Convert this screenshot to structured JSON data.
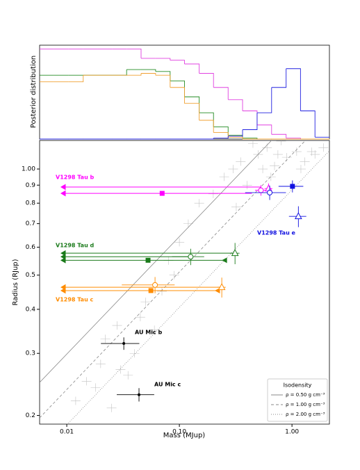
{
  "chart_data": [
    {
      "type": "histogram",
      "ylabel": "Posterior distribution",
      "xscale": "log",
      "xlim": [
        0.00574,
        2.15
      ],
      "ylim": [
        0,
        1
      ],
      "bins": [
        0.00574,
        0.00773,
        0.0104,
        0.014,
        0.0188,
        0.0253,
        0.034,
        0.0457,
        0.0615,
        0.0828,
        0.111,
        0.15,
        0.201,
        0.271,
        0.364,
        0.49,
        0.659,
        0.887,
        1.19,
        1.6,
        2.15
      ],
      "series": [
        {
          "color": "#e040e0",
          "values": [
            0.96,
            0.96,
            0.96,
            0.96,
            0.96,
            0.96,
            0.96,
            0.86,
            0.86,
            0.84,
            0.8,
            0.7,
            0.55,
            0.42,
            0.3,
            0.15,
            0.05,
            0.01,
            0,
            0
          ]
        },
        {
          "color": "#228b22",
          "values": [
            0.68,
            0.68,
            0.68,
            0.68,
            0.68,
            0.68,
            0.74,
            0.74,
            0.72,
            0.62,
            0.45,
            0.28,
            0.13,
            0.04,
            0.01,
            0,
            0,
            0,
            0,
            0
          ]
        },
        {
          "color": "#f0a030",
          "values": [
            0.61,
            0.61,
            0.61,
            0.68,
            0.68,
            0.68,
            0.68,
            0.7,
            0.68,
            0.55,
            0.38,
            0.2,
            0.07,
            0.02,
            0,
            0,
            0,
            0,
            0,
            0
          ]
        },
        {
          "color": "#2020e0",
          "values": [
            0,
            0,
            0,
            0,
            0,
            0,
            0,
            0,
            0,
            0,
            0,
            0,
            0.01,
            0.03,
            0.1,
            0.28,
            0.55,
            0.75,
            0.3,
            0.02
          ]
        }
      ]
    },
    {
      "type": "scatter",
      "xlabel": "Mass (MJup)",
      "ylabel": "Radius (RJup)",
      "xscale": "log",
      "yscale": "log",
      "xlim": [
        0.00574,
        2.15
      ],
      "ylim": [
        0.189,
        1.205
      ],
      "xticks": [
        0.01,
        {
          "value": 0.1,
          "label": "0.10"
        },
        {
          "value": 1,
          "label": "1.00"
        }
      ],
      "yticks": [
        0.2,
        0.3,
        0.4,
        0.5,
        0.6,
        0.7,
        0.8,
        0.9,
        {
          "value": 1,
          "label": "1.00"
        }
      ],
      "background": {
        "color": "#9a9a9a",
        "x": [
          0.012,
          0.015,
          0.018,
          0.02,
          0.025,
          0.03,
          0.022,
          0.028,
          0.04,
          0.05,
          0.06,
          0.035,
          0.045,
          0.07,
          0.08,
          0.1,
          0.12,
          0.15,
          0.09,
          0.2,
          0.25,
          0.3,
          0.35,
          0.4,
          0.5,
          0.6,
          0.7,
          0.8,
          0.9,
          1.1,
          1.3,
          1.6,
          1.9,
          0.45,
          0.55,
          0.65,
          1.2,
          1.5,
          0.32,
          0.75
        ],
        "y": [
          0.22,
          0.25,
          0.24,
          0.28,
          0.21,
          0.27,
          0.33,
          0.36,
          0.3,
          0.42,
          0.35,
          0.26,
          0.38,
          0.45,
          0.55,
          0.62,
          0.7,
          0.8,
          0.5,
          0.85,
          0.95,
          1.0,
          1.05,
          0.9,
          1.1,
          1.15,
          1.02,
          1.2,
          1.08,
          1.12,
          1.05,
          1.1,
          1.15,
          1.18,
          1.0,
          0.95,
          1.0,
          1.12,
          0.78,
          1.1
        ]
      },
      "isodensity": {
        "title": "Isodensity",
        "color": "#888888",
        "lines": [
          {
            "value": 0.5,
            "label": "ρ = 0.50 g cm⁻³",
            "dash": "solid"
          },
          {
            "value": 1,
            "label": "ρ = 1.00 g cm⁻³",
            "dash": "dashed"
          },
          {
            "value": 2,
            "label": "ρ = 2.00 g cm⁻³",
            "dash": "dotted"
          }
        ]
      },
      "planets": [
        {
          "name": "V1298 Tau b",
          "color": "#ff00ff",
          "points": [
            {
              "x": 0.527,
              "y": 0.889,
              "marker": "limit"
            },
            {
              "x": 0.44,
              "y": 0.853,
              "marker": "limit"
            },
            {
              "x": 0.0703,
              "y": 0.853,
              "marker": "square"
            },
            {
              "x": 0.53,
              "y": 0.87,
              "xerr": 0.06,
              "yerr": 0.03,
              "marker": "open-circle"
            },
            {
              "x": 0.62,
              "y": 0.88,
              "xerr": 0.05,
              "yerr": 0.03,
              "marker": "open-triangle"
            }
          ]
        },
        {
          "name": "V1298 Tau e",
          "color": "#1010e0",
          "points": [
            {
              "x": 1.01,
              "y": 0.893,
              "xerr": 0.25,
              "yerr": 0.035,
              "marker": "square"
            },
            {
              "x": 1.14,
              "y": 0.734,
              "xerr": 0.2,
              "yerr": 0.05,
              "marker": "open-triangle"
            },
            {
              "x": 0.634,
              "y": 0.857,
              "xerr": 0.25,
              "yerr": 0.04,
              "marker": "open-circle"
            }
          ]
        },
        {
          "name": "V1298 Tau d",
          "color": "#1a7a1a",
          "points": [
            {
              "x": 0.32,
              "y": 0.577,
              "marker": "limit"
            },
            {
              "x": 0.126,
              "y": 0.564,
              "marker": "limit"
            },
            {
              "x": 0.252,
              "y": 0.551,
              "marker": "limit"
            },
            {
              "x": 0.0527,
              "y": 0.551,
              "marker": "square"
            },
            {
              "x": 0.252,
              "y": 0.551,
              "marker": "left"
            },
            {
              "x": 0.126,
              "y": 0.564,
              "xerr": 0.04,
              "yerr": 0.03,
              "marker": "open-circle"
            },
            {
              "x": 0.312,
              "y": 0.577,
              "xerr": 0.03,
              "yerr": 0.04,
              "marker": "open-triangle"
            }
          ]
        },
        {
          "name": "V1298 Tau c",
          "color": "#ff8c00",
          "points": [
            {
              "x": 0.238,
              "y": 0.462,
              "marker": "limit"
            },
            {
              "x": 0.218,
              "y": 0.452,
              "marker": "limit"
            },
            {
              "x": 0.0559,
              "y": 0.452,
              "marker": "square"
            },
            {
              "x": 0.218,
              "y": 0.452,
              "marker": "left"
            },
            {
              "x": 0.238,
              "y": 0.462,
              "xerr": 0.02,
              "yerr": 0.03,
              "marker": "open-triangle"
            },
            {
              "x": 0.0608,
              "y": 0.469,
              "xerr": 0.03,
              "yerr": 0.025,
              "marker": "open-circle"
            }
          ]
        },
        {
          "name": "AU Mic b",
          "color": "#000000",
          "points": [
            {
              "x": 0.0321,
              "y": 0.32,
              "xerr": 0.012,
              "yerr": 0.013,
              "marker": "dot"
            }
          ]
        },
        {
          "name": "AU Mic c",
          "color": "#000000",
          "points": [
            {
              "x": 0.0438,
              "y": 0.229,
              "xerr": 0.016,
              "yerr": 0.01,
              "marker": "dot"
            }
          ]
        }
      ]
    }
  ]
}
